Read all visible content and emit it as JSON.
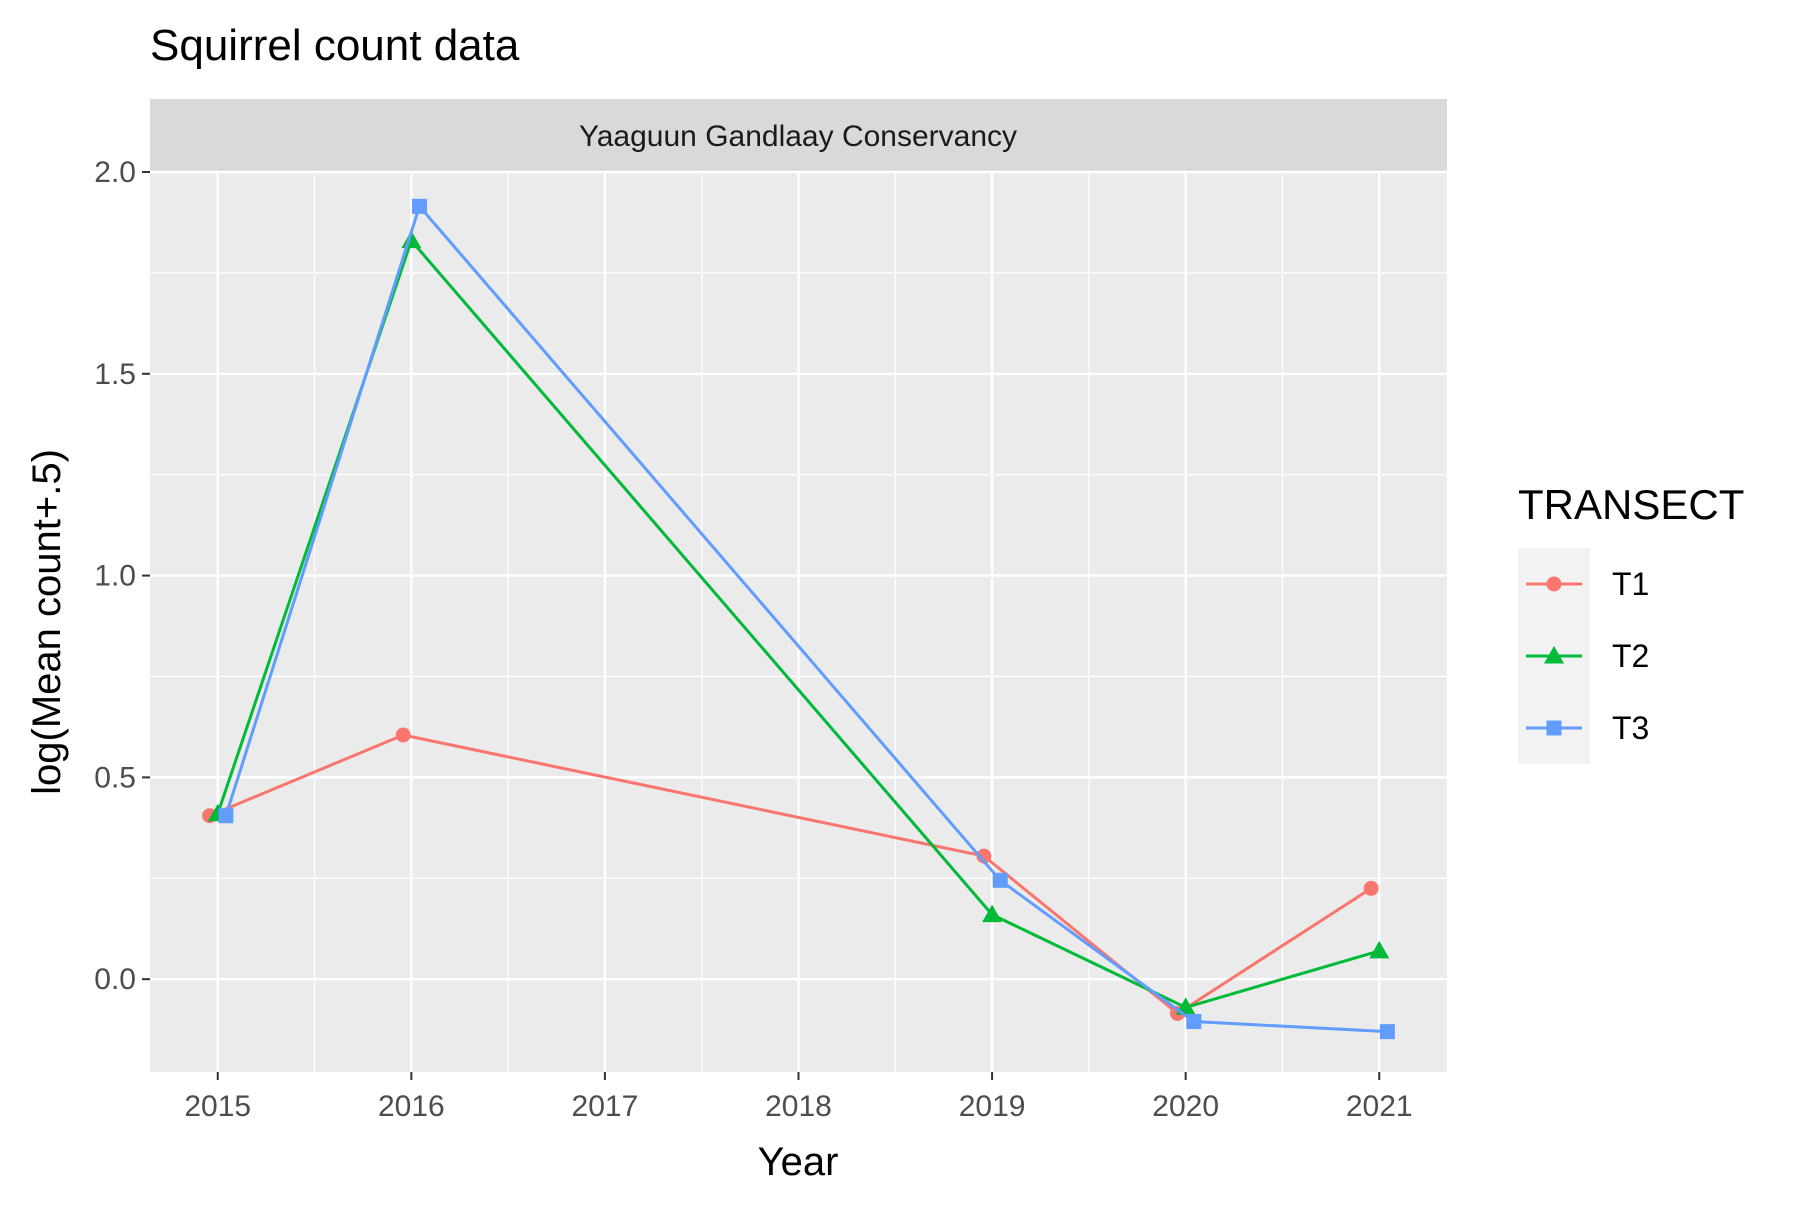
{
  "chart_data": {
    "type": "line",
    "title": "Squirrel count data",
    "facet_label": "Yaaguun Gandlaay Conservancy",
    "xlabel": "Year",
    "ylabel": "log(Mean count+.5)",
    "x_ticks": [
      "2015",
      "2016",
      "2017",
      "2018",
      "2019",
      "2020",
      "2021"
    ],
    "y_ticks": [
      "0.0",
      "0.5",
      "1.0",
      "1.5",
      "2.0"
    ],
    "xlim": [
      2014.65,
      2021.35
    ],
    "ylim": [
      -0.23,
      2.0
    ],
    "legend": {
      "title": "TRANSECT",
      "position": "right"
    },
    "series": [
      {
        "name": "T1",
        "color": "#F8766D",
        "shape": "circle",
        "x": [
          2015,
          2016,
          2019,
          2020,
          2021
        ],
        "y": [
          0.405,
          0.605,
          0.305,
          -0.085,
          0.225
        ]
      },
      {
        "name": "T2",
        "color": "#00BA38",
        "shape": "triangle",
        "x": [
          2015,
          2016,
          2019,
          2020,
          2021
        ],
        "y": [
          0.41,
          1.83,
          0.16,
          -0.07,
          0.07
        ]
      },
      {
        "name": "T3",
        "color": "#619CFF",
        "shape": "square",
        "x": [
          2015,
          2016,
          2019,
          2020,
          2021
        ],
        "y": [
          0.405,
          1.915,
          0.245,
          -0.105,
          -0.13
        ]
      }
    ]
  }
}
